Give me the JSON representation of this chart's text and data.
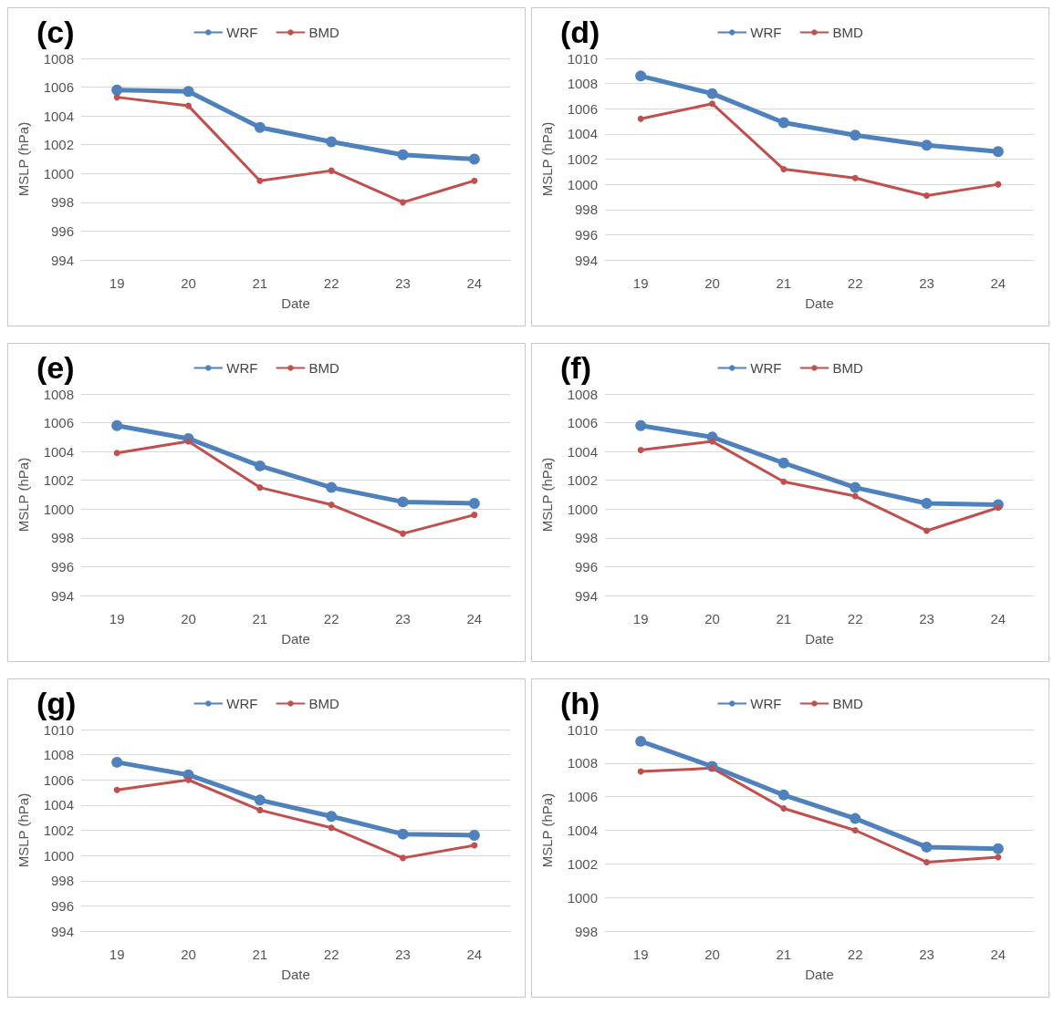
{
  "chart_data": [
    {
      "type": "line",
      "title": "(c)",
      "xlabel": "Date",
      "ylabel": "MSLP (hPa)",
      "categories": [
        "19",
        "20",
        "21",
        "22",
        "23",
        "24"
      ],
      "ylim": [
        994,
        1008
      ],
      "yticks": [
        994,
        996,
        998,
        1000,
        1002,
        1004,
        1006,
        1008
      ],
      "grid": "y",
      "legend": "top",
      "marker": "circle",
      "line_style": "solid",
      "series": [
        {
          "name": "WRF",
          "color": "#4f81bd",
          "values": [
            1005.8,
            1005.7,
            1003.2,
            1002.2,
            1001.3,
            1001.0
          ]
        },
        {
          "name": "BMD",
          "color": "#c0504d",
          "values": [
            1005.3,
            1004.7,
            999.5,
            1000.2,
            998.0,
            999.5
          ]
        }
      ]
    },
    {
      "type": "line",
      "title": "(d)",
      "xlabel": "Date",
      "ylabel": "MSLP (hPa)",
      "categories": [
        "19",
        "20",
        "21",
        "22",
        "23",
        "24"
      ],
      "ylim": [
        994,
        1010
      ],
      "yticks": [
        994,
        996,
        998,
        1000,
        1002,
        1004,
        1006,
        1008,
        1010
      ],
      "grid": "y",
      "legend": "top",
      "marker": "circle",
      "line_style": "solid",
      "series": [
        {
          "name": "WRF",
          "color": "#4f81bd",
          "values": [
            1008.6,
            1007.2,
            1004.9,
            1003.9,
            1003.1,
            1002.6
          ]
        },
        {
          "name": "BMD",
          "color": "#c0504d",
          "values": [
            1005.2,
            1006.4,
            1001.2,
            1000.5,
            999.1,
            1000.0
          ]
        }
      ]
    },
    {
      "type": "line",
      "title": "(e)",
      "xlabel": "Date",
      "ylabel": "MSLP (hPa)",
      "categories": [
        "19",
        "20",
        "21",
        "22",
        "23",
        "24"
      ],
      "ylim": [
        994,
        1008
      ],
      "yticks": [
        994,
        996,
        998,
        1000,
        1002,
        1004,
        1006,
        1008
      ],
      "grid": "y",
      "legend": "top",
      "marker": "circle",
      "line_style": "solid",
      "series": [
        {
          "name": "WRF",
          "color": "#4f81bd",
          "values": [
            1005.8,
            1004.9,
            1003.0,
            1001.5,
            1000.5,
            1000.4
          ]
        },
        {
          "name": "BMD",
          "color": "#c0504d",
          "values": [
            1003.9,
            1004.7,
            1001.5,
            1000.3,
            998.3,
            999.6
          ]
        }
      ]
    },
    {
      "type": "line",
      "title": "(f)",
      "xlabel": "Date",
      "ylabel": "MSLP (hPa)",
      "categories": [
        "19",
        "20",
        "21",
        "22",
        "23",
        "24"
      ],
      "ylim": [
        994,
        1008
      ],
      "yticks": [
        994,
        996,
        998,
        1000,
        1002,
        1004,
        1006,
        1008
      ],
      "grid": "y",
      "legend": "top",
      "marker": "circle",
      "line_style": "solid",
      "series": [
        {
          "name": "WRF",
          "color": "#4f81bd",
          "values": [
            1005.8,
            1005.0,
            1003.2,
            1001.5,
            1000.4,
            1000.3
          ]
        },
        {
          "name": "BMD",
          "color": "#c0504d",
          "values": [
            1004.1,
            1004.7,
            1001.9,
            1000.9,
            998.5,
            1000.1
          ]
        }
      ]
    },
    {
      "type": "line",
      "title": "(g)",
      "xlabel": "Date",
      "ylabel": "MSLP (hPa)",
      "categories": [
        "19",
        "20",
        "21",
        "22",
        "23",
        "24"
      ],
      "ylim": [
        994,
        1010
      ],
      "yticks": [
        994,
        996,
        998,
        1000,
        1002,
        1004,
        1006,
        1008,
        1010
      ],
      "grid": "y",
      "legend": "top",
      "marker": "circle",
      "line_style": "solid",
      "series": [
        {
          "name": "WRF",
          "color": "#4f81bd",
          "values": [
            1007.4,
            1006.4,
            1004.4,
            1003.1,
            1001.7,
            1001.6
          ]
        },
        {
          "name": "BMD",
          "color": "#c0504d",
          "values": [
            1005.2,
            1006.0,
            1003.6,
            1002.2,
            999.8,
            1000.8
          ]
        }
      ]
    },
    {
      "type": "line",
      "title": "(h)",
      "xlabel": "Date",
      "ylabel": "MSLP (hPa)",
      "categories": [
        "19",
        "20",
        "21",
        "22",
        "23",
        "24"
      ],
      "ylim": [
        998,
        1010
      ],
      "yticks": [
        998,
        1000,
        1002,
        1004,
        1006,
        1008,
        1010
      ],
      "grid": "y",
      "legend": "top",
      "marker": "circle",
      "line_style": "solid",
      "series": [
        {
          "name": "WRF",
          "color": "#4f81bd",
          "values": [
            1009.3,
            1007.8,
            1006.1,
            1004.7,
            1003.0,
            1002.9
          ]
        },
        {
          "name": "BMD",
          "color": "#c0504d",
          "values": [
            1007.5,
            1007.7,
            1005.3,
            1004.0,
            1002.1,
            1002.4
          ]
        }
      ]
    }
  ]
}
